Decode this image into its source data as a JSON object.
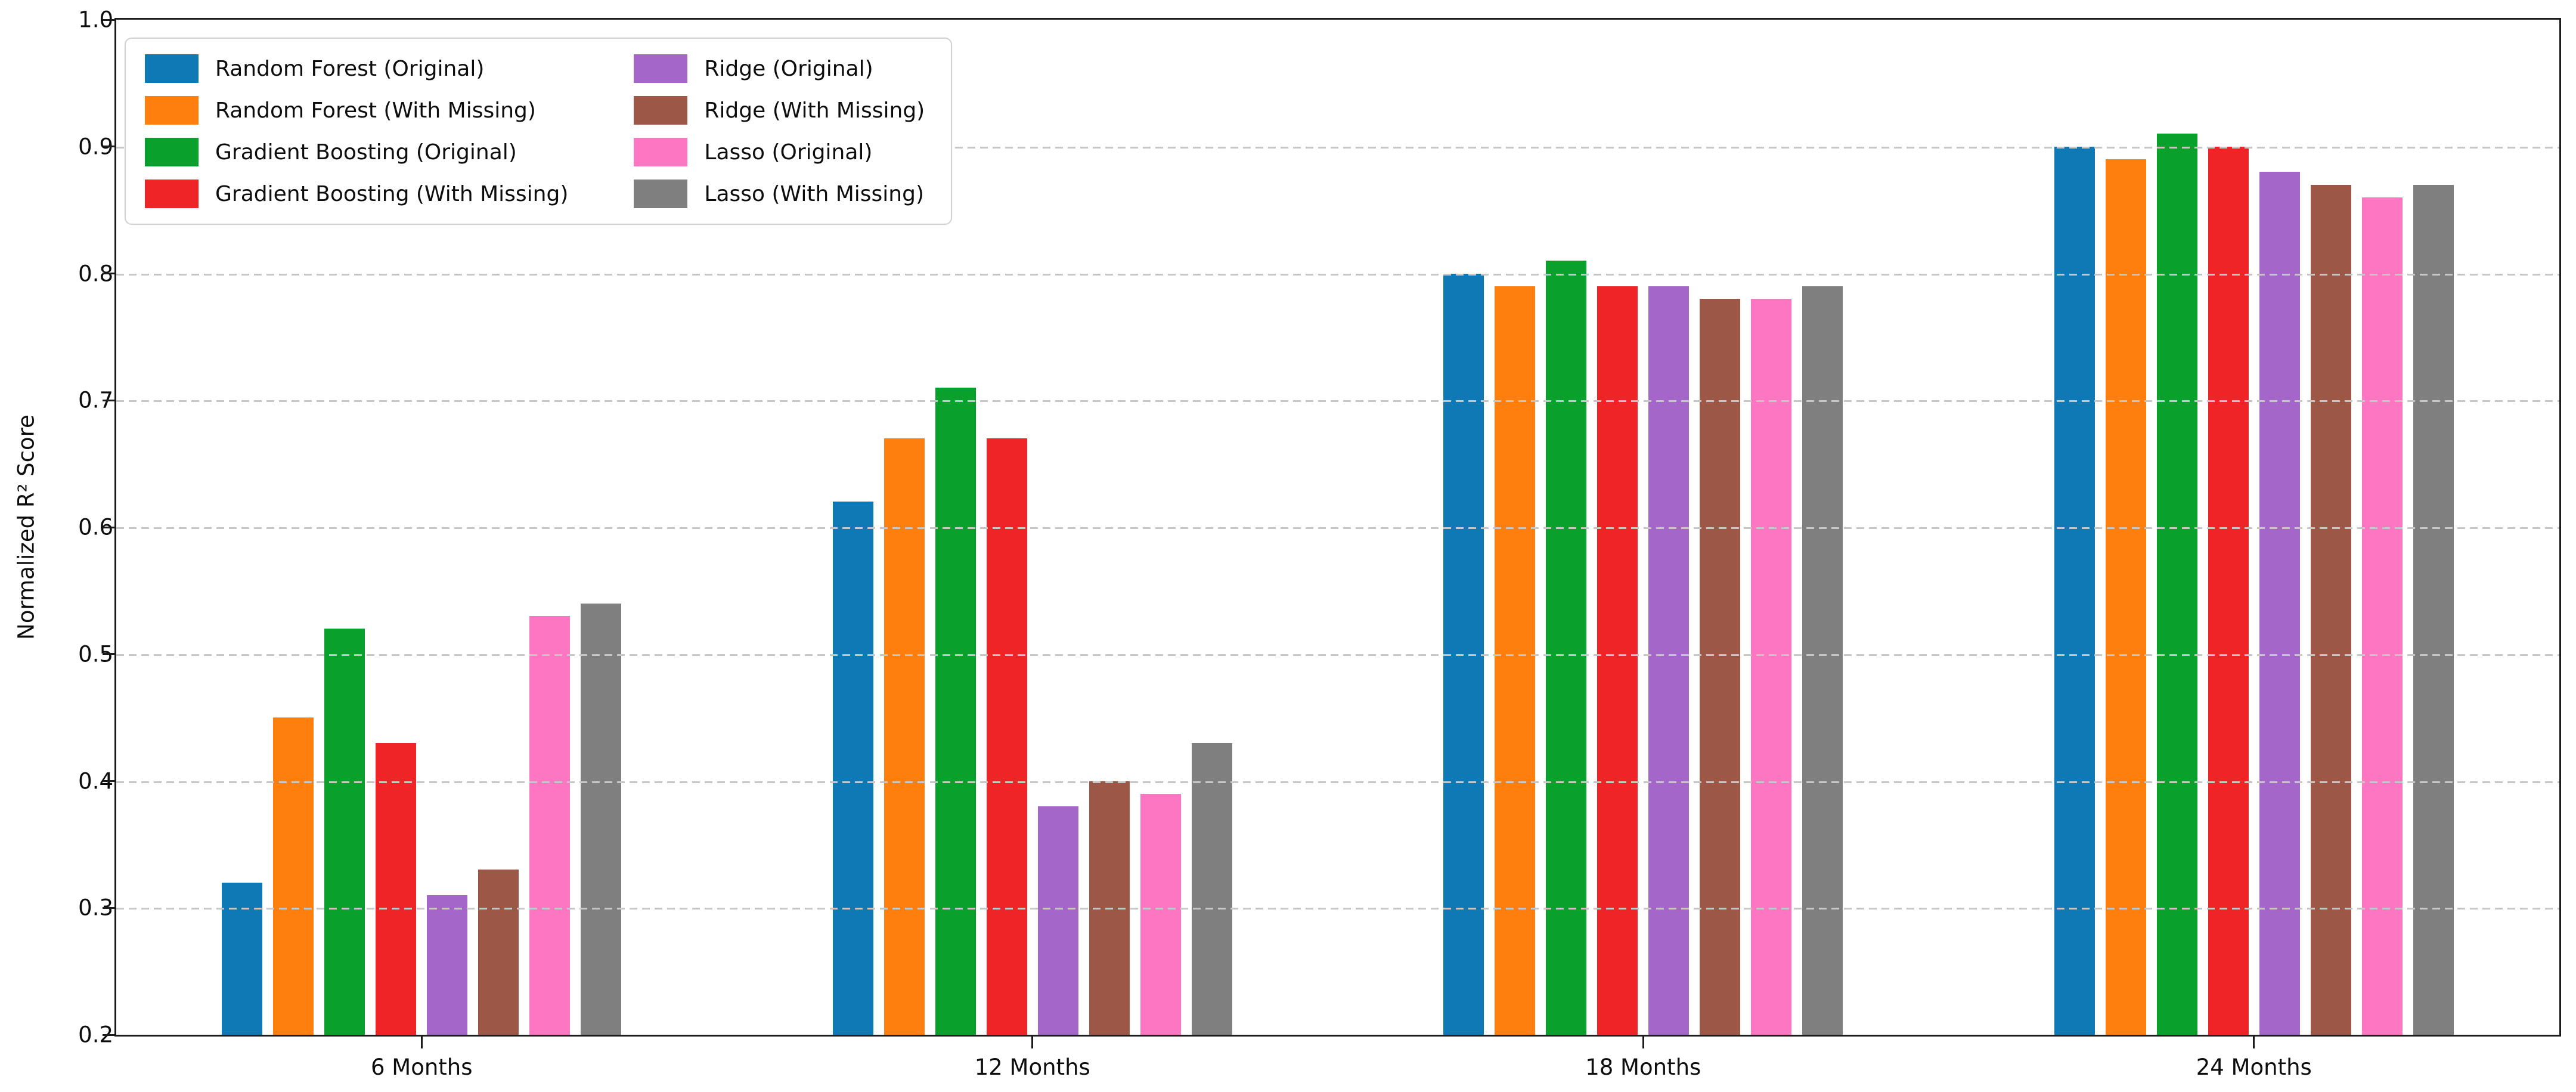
{
  "figure": {
    "background_color": "#ffffff",
    "spine_color": "#1c1c1c",
    "grid_color": "#c6c6c6",
    "grid_style": "dashed-horizontal"
  },
  "chart_data": {
    "type": "bar",
    "title": "",
    "xlabel": "",
    "ylabel": "Normalized R² Score",
    "categories": [
      "6 Months",
      "12 Months",
      "18 Months",
      "24 Months"
    ],
    "series": [
      {
        "name": "Random Forest (Original)",
        "color": "#0e79b5",
        "values": [
          0.32,
          0.62,
          0.8,
          0.9
        ]
      },
      {
        "name": "Random Forest (With Missing)",
        "color": "#ff7f0e",
        "values": [
          0.45,
          0.67,
          0.79,
          0.89
        ]
      },
      {
        "name": "Gradient Boosting (Original)",
        "color": "#09a12b",
        "values": [
          0.52,
          0.71,
          0.81,
          0.91
        ]
      },
      {
        "name": "Gradient Boosting (With Missing)",
        "color": "#ee2426",
        "values": [
          0.43,
          0.67,
          0.79,
          0.9
        ]
      },
      {
        "name": "Ridge (Original)",
        "color": "#a566c9",
        "values": [
          0.31,
          0.38,
          0.79,
          0.88
        ]
      },
      {
        "name": "Ridge (With Missing)",
        "color": "#9d5747",
        "values": [
          0.33,
          0.4,
          0.78,
          0.87
        ]
      },
      {
        "name": "Lasso (Original)",
        "color": "#fd76c2",
        "values": [
          0.53,
          0.39,
          0.78,
          0.86
        ]
      },
      {
        "name": "Lasso (With Missing)",
        "color": "#7f7f7f",
        "values": [
          0.54,
          0.43,
          0.79,
          0.87
        ]
      }
    ],
    "ylim": [
      0.2,
      1.0
    ],
    "yticks": [
      "1.0",
      "0.9",
      "0.8",
      "0.7",
      "0.6",
      "0.5",
      "0.4",
      "0.3",
      "0.2"
    ],
    "ytick_values": [
      1.0,
      0.9,
      0.8,
      0.7,
      0.6,
      0.5,
      0.4,
      0.3,
      0.2
    ],
    "grid_values": [
      0.9,
      0.8,
      0.7,
      0.6,
      0.5,
      0.4,
      0.3
    ],
    "grid": "on",
    "legend_position": "upper-left, 2 columns, column-major"
  }
}
